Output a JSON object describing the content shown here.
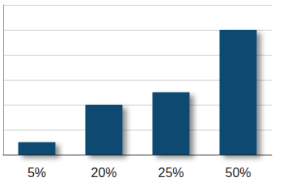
{
  "chart_data": {
    "type": "bar",
    "categories": [
      "5%",
      "20%",
      "25%",
      "50%"
    ],
    "values": [
      5,
      20,
      25,
      50
    ],
    "color": "#0f4a70",
    "ylim": [
      0,
      60
    ],
    "yticks": [
      0,
      10,
      20,
      30,
      40,
      50,
      60
    ],
    "grid": true,
    "tick_labels": "x"
  }
}
